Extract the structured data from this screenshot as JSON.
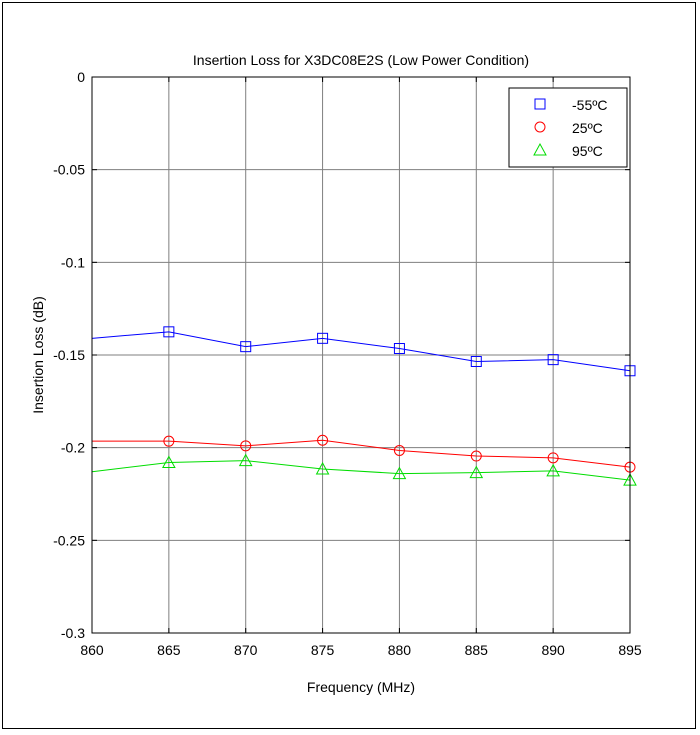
{
  "chart_data": {
    "type": "line",
    "title": "Insertion Loss for X3DC08E2S (Low Power Condition)",
    "xlabel": "Frequency (MHz)",
    "ylabel": "Insertion Loss (dB)",
    "xlim": [
      860,
      895
    ],
    "ylim": [
      -0.3,
      0
    ],
    "x_ticks": [
      860,
      865,
      870,
      875,
      880,
      885,
      890,
      895
    ],
    "x_tick_labels": [
      "860",
      "865",
      "870",
      "875",
      "880",
      "885",
      "890",
      "895"
    ],
    "y_ticks": [
      0,
      -0.05,
      -0.1,
      -0.15,
      -0.2,
      -0.25,
      -0.3
    ],
    "y_tick_labels": [
      "0",
      "-0.05",
      "-0.1",
      "-0.15",
      "-0.2",
      "-0.25",
      "-0.3"
    ],
    "grid": true,
    "legend_position": "top-right",
    "x": [
      860,
      865,
      870,
      875,
      880,
      885,
      890,
      895
    ],
    "series": [
      {
        "name": "-55ºC",
        "color": "#0000ff",
        "marker": "square",
        "values": [
          -0.141,
          -0.1375,
          -0.1455,
          -0.141,
          -0.1465,
          -0.1535,
          -0.1525,
          -0.1585
        ],
        "marker_from": 865
      },
      {
        "name": "25ºC",
        "color": "#ff0000",
        "marker": "circle",
        "values": [
          -0.1965,
          -0.1965,
          -0.199,
          -0.196,
          -0.2015,
          -0.2045,
          -0.2055,
          -0.2105
        ],
        "marker_from": 865
      },
      {
        "name": "95ºC",
        "color": "#00dd00",
        "marker": "triangle",
        "values": [
          -0.213,
          -0.208,
          -0.207,
          -0.2115,
          -0.214,
          -0.2135,
          -0.2125,
          -0.2175
        ],
        "marker_from": 865
      }
    ]
  }
}
